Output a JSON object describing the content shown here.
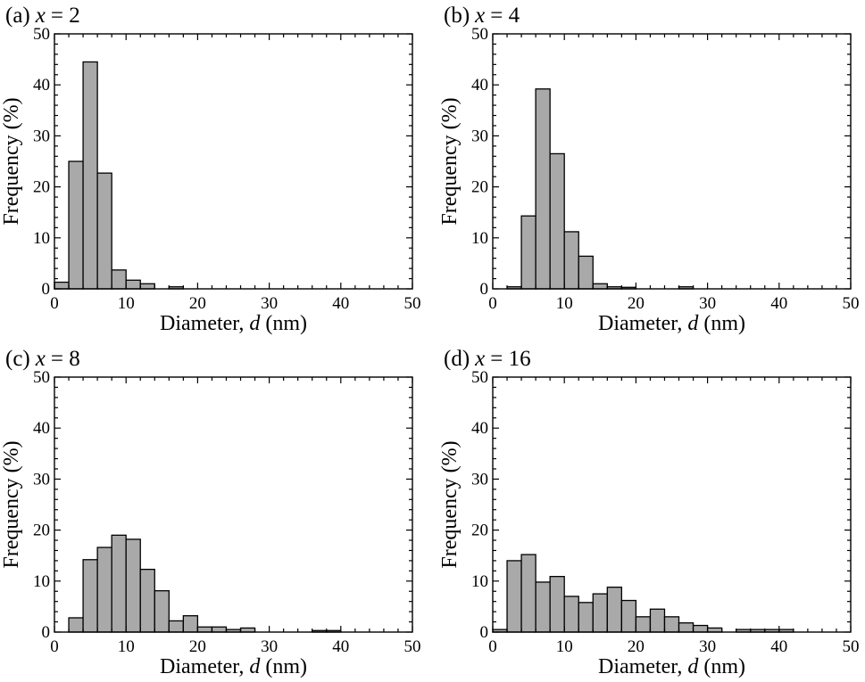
{
  "colors": {
    "bar_fill": "#a9a9a9",
    "bar_edge": "#000000",
    "background": "#ffffff"
  },
  "chart_data": [
    {
      "type": "bar",
      "panel_label": "(a)",
      "title_var": "x",
      "title_value": "= 2",
      "xlabel_main": "Diameter, ",
      "xlabel_var": "d",
      "xlabel_unit": " (nm)",
      "ylabel": "Frequency (%)",
      "xlim": [
        0,
        50
      ],
      "ylim": [
        0,
        50
      ],
      "xticks": [
        0,
        10,
        20,
        30,
        40,
        50
      ],
      "yticks": [
        0,
        10,
        20,
        30,
        40,
        50
      ],
      "bin_width": 2,
      "bin_starts": [
        0,
        2,
        4,
        6,
        8,
        10,
        12,
        14,
        16
      ],
      "values": [
        1.3,
        25.0,
        44.5,
        22.7,
        3.7,
        1.7,
        1.0,
        0.0,
        0.4
      ]
    },
    {
      "type": "bar",
      "panel_label": "(b)",
      "title_var": "x",
      "title_value": "= 4",
      "xlabel_main": "Diameter, ",
      "xlabel_var": "d",
      "xlabel_unit": " (nm)",
      "ylabel": "Frequency (%)",
      "xlim": [
        0,
        50
      ],
      "ylim": [
        0,
        50
      ],
      "xticks": [
        0,
        10,
        20,
        30,
        40,
        50
      ],
      "yticks": [
        0,
        10,
        20,
        30,
        40,
        50
      ],
      "bin_width": 2,
      "bin_starts": [
        2,
        4,
        6,
        8,
        10,
        12,
        14,
        16,
        18,
        20,
        22,
        24,
        26
      ],
      "values": [
        0.4,
        14.3,
        39.2,
        26.5,
        11.2,
        6.4,
        1.0,
        0.4,
        0.3,
        0.0,
        0.0,
        0.0,
        0.4
      ]
    },
    {
      "type": "bar",
      "panel_label": "(c)",
      "title_var": "x",
      "title_value": "= 8",
      "xlabel_main": "Diameter, ",
      "xlabel_var": "d",
      "xlabel_unit": " (nm)",
      "ylabel": "Frequency (%)",
      "xlim": [
        0,
        50
      ],
      "ylim": [
        0,
        50
      ],
      "xticks": [
        0,
        10,
        20,
        30,
        40,
        50
      ],
      "yticks": [
        0,
        10,
        20,
        30,
        40,
        50
      ],
      "bin_width": 2,
      "bin_starts": [
        2,
        4,
        6,
        8,
        10,
        12,
        14,
        16,
        18,
        20,
        22,
        24,
        26,
        28,
        30,
        32,
        34,
        36,
        38
      ],
      "values": [
        2.8,
        14.2,
        16.6,
        19.0,
        18.2,
        12.3,
        8.1,
        2.2,
        3.2,
        1.0,
        1.0,
        0.5,
        0.8,
        0.0,
        0.0,
        0.0,
        0.0,
        0.3,
        0.3
      ]
    },
    {
      "type": "bar",
      "panel_label": "(d)",
      "title_var": "x",
      "title_value": "= 16",
      "xlabel_main": "Diameter, ",
      "xlabel_var": "d",
      "xlabel_unit": " (nm)",
      "ylabel": "Frequency (%)",
      "xlim": [
        0,
        50
      ],
      "ylim": [
        0,
        50
      ],
      "xticks": [
        0,
        10,
        20,
        30,
        40,
        50
      ],
      "yticks": [
        0,
        10,
        20,
        30,
        40,
        50
      ],
      "bin_width": 2,
      "bin_starts": [
        0,
        2,
        4,
        6,
        8,
        10,
        12,
        14,
        16,
        18,
        20,
        22,
        24,
        26,
        28,
        30,
        32,
        34,
        36,
        38,
        40
      ],
      "values": [
        0.5,
        14.0,
        15.2,
        9.8,
        10.9,
        7.0,
        5.8,
        7.5,
        8.8,
        6.2,
        3.0,
        4.5,
        3.0,
        1.8,
        1.3,
        0.8,
        0.0,
        0.5,
        0.5,
        0.5,
        0.5
      ]
    }
  ]
}
